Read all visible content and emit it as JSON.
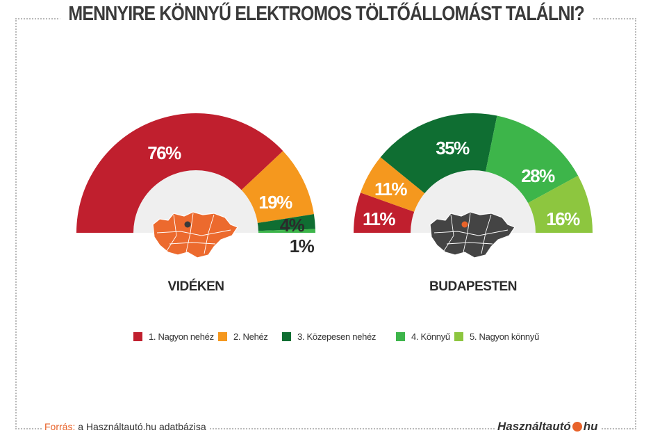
{
  "title": "MENNYIRE KÖNNYŰ ELEKTROMOS TÖLTŐÁLLOMÁST TALÁLNI?",
  "chart_data": [
    {
      "type": "pie",
      "subtype": "semi-donut",
      "label": "VIDÉKEN",
      "categories": [
        "1. Nagyon nehéz",
        "2. Nehéz",
        "3. Közepesen nehéz",
        "4. Könnyű",
        "5. Nagyon könnyű"
      ],
      "values": [
        76,
        19,
        4,
        1,
        0
      ],
      "value_labels": [
        "76%",
        "19%",
        "4%",
        "1%",
        ""
      ],
      "center_map_color": "#ec6a2e"
    },
    {
      "type": "pie",
      "subtype": "semi-donut",
      "label": "BUDAPESTEN",
      "categories": [
        "1. Nagyon nehéz",
        "2. Nehéz",
        "3. Közepesen nehéz",
        "4. Könnyű",
        "5. Nagyon könnyű"
      ],
      "values": [
        11,
        11,
        35,
        28,
        16
      ],
      "value_labels": [
        "11%",
        "11%",
        "35%",
        "28%",
        "16%"
      ],
      "center_map_color": "#444444"
    }
  ],
  "colors": [
    "#c01f2e",
    "#f5981e",
    "#0f6e32",
    "#3db54a",
    "#8dc63f"
  ],
  "legend": {
    "position": "bottom",
    "items": [
      {
        "label": "1. Nagyon nehéz",
        "color": "#c01f2e"
      },
      {
        "label": "2. Nehéz",
        "color": "#f5981e"
      },
      {
        "label": "3. Közepesen nehéz",
        "color": "#0f6e32"
      },
      {
        "label": "4. Könnyű",
        "color": "#3db54a"
      },
      {
        "label": "5. Nagyon könnyű",
        "color": "#8dc63f"
      }
    ]
  },
  "footer": {
    "source_label": "Forrás:",
    "source_text": "a Használtautó.hu adatbázisa",
    "logo_left": "Használtautó",
    "logo_right": "hu"
  }
}
